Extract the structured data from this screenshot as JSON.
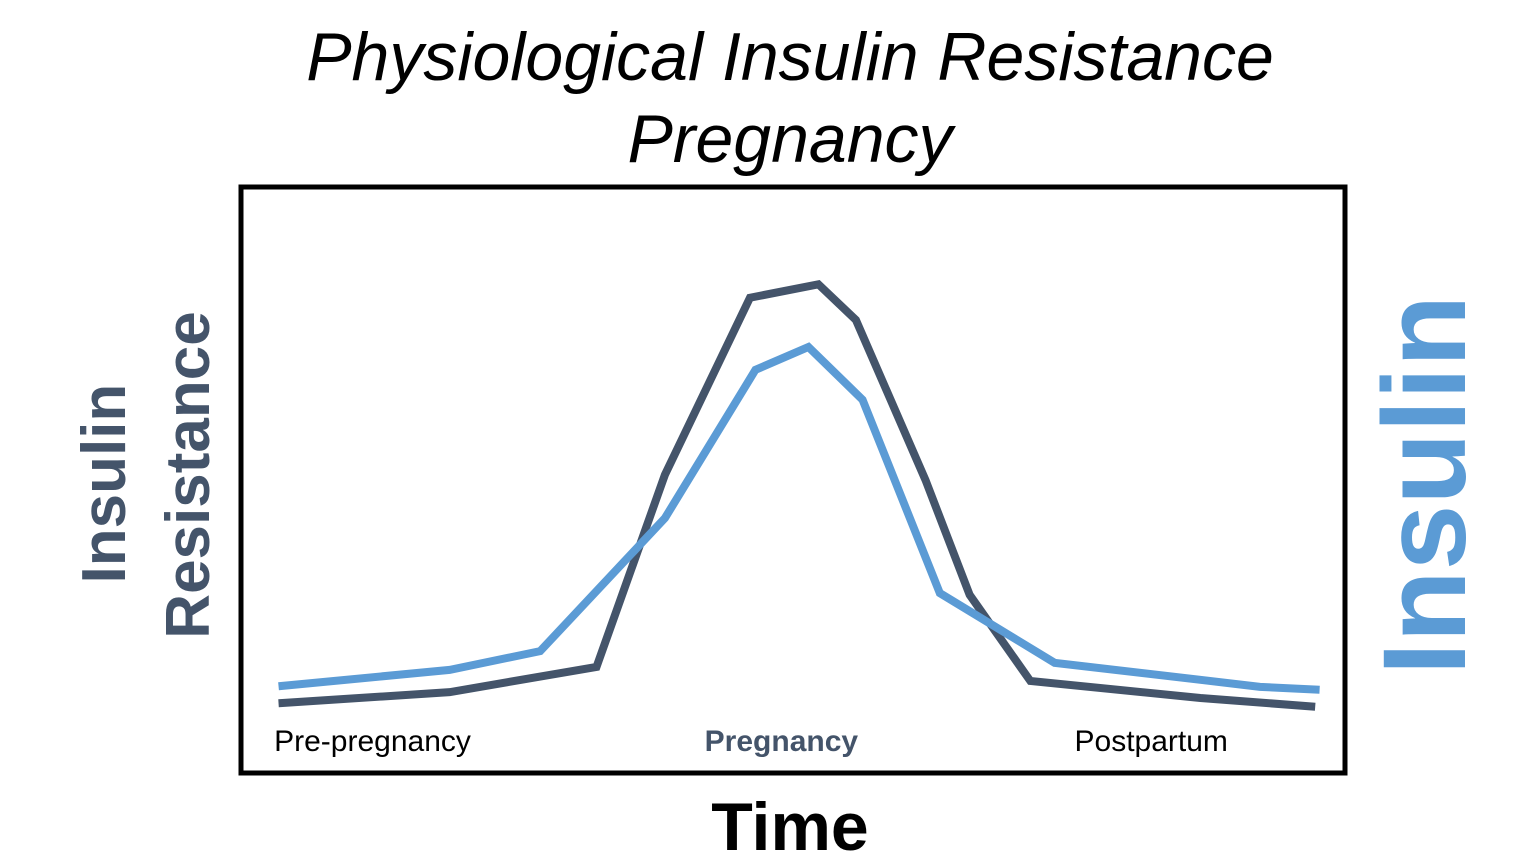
{
  "chart_data": {
    "type": "line",
    "title": "Physiological Insulin Resistance",
    "subtitle": "Pregnancy",
    "xlabel": "Time",
    "ylabel": "Insulin Resistance",
    "y2label": "Insulin",
    "xlim": [
      0,
      100
    ],
    "ylim": [
      0,
      100
    ],
    "grid": false,
    "legend": "none",
    "phase_labels": [
      {
        "text": "Pre-pregnancy",
        "x": 3,
        "emphasis": false
      },
      {
        "text": "Pregnancy",
        "x": 42,
        "emphasis": true
      },
      {
        "text": "Postpartum",
        "x": 75.5,
        "emphasis": false
      }
    ],
    "series": [
      {
        "name": "Insulin Resistance",
        "color": "#44546A",
        "x": [
          3.4,
          18.9,
          32.2,
          38.4,
          46.1,
          52.3,
          55.7,
          62.0,
          66.0,
          71.5,
          86.9,
          97.3
        ],
        "y": [
          11.9,
          13.8,
          18.1,
          50.9,
          81.1,
          83.4,
          77.3,
          50.0,
          30.4,
          15.7,
          12.8,
          11.3
        ]
      },
      {
        "name": "Insulin",
        "color": "#5B9BD5",
        "x": [
          3.4,
          18.9,
          27.1,
          38.4,
          46.6,
          51.4,
          56.3,
          63.3,
          73.7,
          86.9,
          92.3,
          97.7
        ],
        "y": [
          14.8,
          17.6,
          20.8,
          43.5,
          68.8,
          72.7,
          63.7,
          30.7,
          18.8,
          15.9,
          14.7,
          14.2
        ]
      }
    ]
  }
}
